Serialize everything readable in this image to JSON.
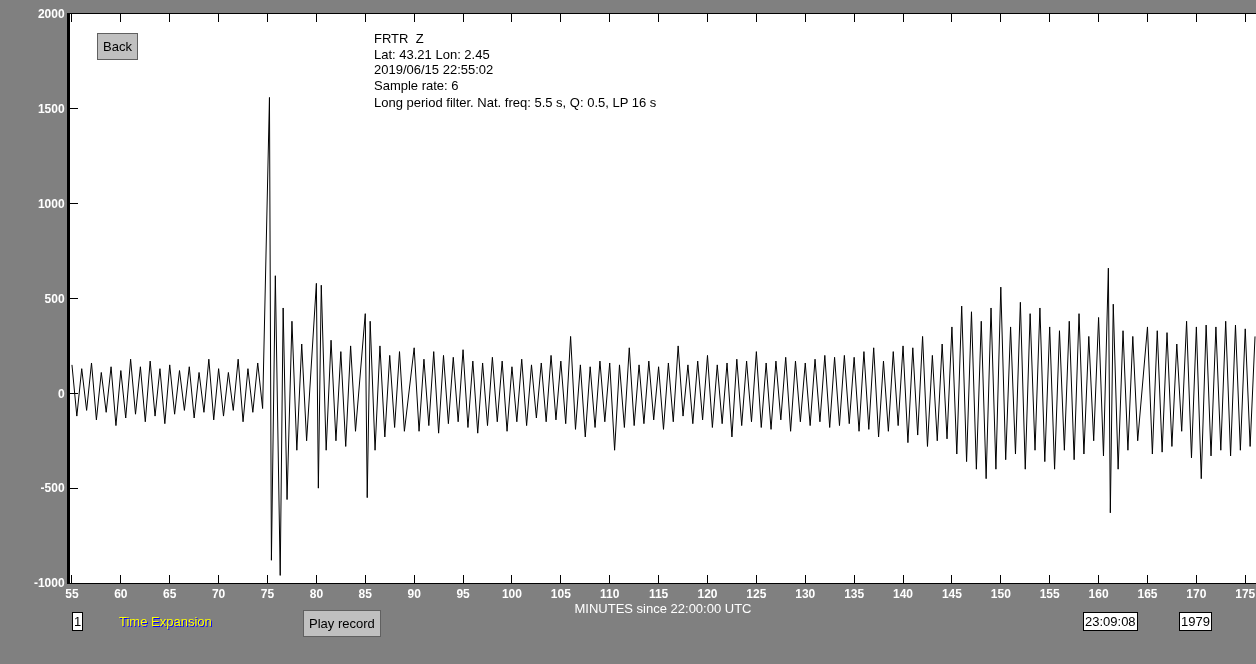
{
  "chart_data": {
    "type": "line",
    "xlabel": "MINUTES since 22:00:00 UTC",
    "annotations": [
      "Back",
      "FRTR  Z",
      "Lat: 43.21 Lon: 2.45",
      "2019/06/15 22:55:02",
      "Sample rate: 6",
      "Long period filter. Nat. freq: 5.5 s, Q: 0.5, LP 16 s",
      "1",
      "Time Expansion",
      "Play record",
      "23:09:08",
      "1979"
    ],
    "xlim": [
      54.8,
      176.1
    ],
    "xticks": [
      55,
      60,
      65,
      70,
      75,
      80,
      85,
      90,
      95,
      100,
      105,
      110,
      115,
      120,
      125,
      130,
      135,
      140,
      145,
      150,
      155,
      160,
      165,
      170,
      175
    ],
    "ylim": [
      -1000,
      2000
    ],
    "yticks": [
      -1000,
      -500,
      0,
      500,
      1000,
      1500,
      2000
    ],
    "series": [
      {
        "color": "#000000",
        "x": [
          55,
          55.5,
          56,
          56.5,
          57,
          57.5,
          58,
          58.5,
          59,
          59.5,
          60,
          60.5,
          61,
          61.5,
          62,
          62.5,
          63,
          63.5,
          64,
          64.5,
          65,
          65.5,
          66,
          66.5,
          67,
          67.5,
          68,
          68.5,
          69,
          69.5,
          70,
          70.5,
          71,
          71.5,
          72,
          72.5,
          73,
          73.5,
          74,
          74.5,
          75.2,
          75.4,
          75.8,
          76.3,
          76.6,
          77,
          77.5,
          78,
          78.5,
          79,
          80,
          80.2,
          80.5,
          81,
          81.5,
          82,
          82.5,
          83,
          83.5,
          84,
          85,
          85.2,
          85.5,
          86,
          86.5,
          87,
          87.5,
          88,
          88.5,
          89,
          90,
          90.5,
          91,
          91.5,
          92,
          92.5,
          93,
          93.5,
          94,
          94.5,
          95,
          95.5,
          96,
          96.5,
          97,
          97.5,
          98,
          98.5,
          99,
          99.5,
          100,
          100.5,
          101,
          101.5,
          102,
          102.5,
          103,
          103.5,
          104,
          104.5,
          105,
          105.5,
          106,
          106.5,
          107,
          107.5,
          108,
          108.5,
          109,
          109.5,
          110,
          110.5,
          111,
          111.5,
          112,
          112.5,
          113,
          113.5,
          114,
          114.5,
          115,
          115.5,
          116,
          116.5,
          117,
          117.5,
          118,
          118.5,
          119,
          119.5,
          120,
          120.5,
          121,
          121.5,
          122,
          122.5,
          123,
          123.5,
          124,
          124.5,
          125,
          125.5,
          126,
          126.5,
          127,
          127.5,
          128,
          128.5,
          129,
          129.5,
          130,
          130.5,
          131,
          131.5,
          132,
          132.5,
          133,
          133.5,
          134,
          134.5,
          135,
          135.5,
          136,
          136.5,
          137,
          137.5,
          138,
          138.5,
          139,
          139.5,
          140,
          140.5,
          141,
          141.5,
          142,
          142.5,
          143,
          143.5,
          144,
          144.5,
          145,
          145.5,
          146,
          146.5,
          147,
          147.5,
          148,
          148.5,
          149,
          149.5,
          150,
          150.5,
          151,
          151.5,
          152,
          152.5,
          153,
          153.5,
          154,
          154.5,
          155,
          155.5,
          156,
          156.5,
          157,
          157.5,
          158,
          158.5,
          159,
          159.5,
          160,
          160.5,
          161,
          161.2,
          161.5,
          162,
          162.5,
          163,
          163.5,
          164,
          165,
          165.5,
          166,
          166.5,
          167,
          167.5,
          168,
          168.5,
          169,
          169.5,
          170,
          170.5,
          171,
          171.5,
          172,
          172.5,
          173,
          173.5,
          174,
          174.5,
          175,
          175.5,
          176
        ],
        "values": [
          150,
          -120,
          130,
          -90,
          160,
          -140,
          110,
          -100,
          140,
          -170,
          120,
          -130,
          180,
          -110,
          140,
          -150,
          170,
          -120,
          130,
          -160,
          150,
          -110,
          120,
          -90,
          140,
          -130,
          110,
          -100,
          180,
          -140,
          130,
          -120,
          110,
          -90,
          180,
          -150,
          130,
          -100,
          160,
          -80,
          1560,
          -880,
          620,
          -960,
          450,
          -560,
          380,
          -300,
          260,
          -250,
          580,
          -500,
          570,
          -300,
          280,
          -250,
          220,
          -280,
          250,
          -200,
          420,
          -550,
          380,
          -300,
          250,
          -230,
          200,
          -180,
          220,
          -200,
          240,
          -200,
          180,
          -170,
          220,
          -210,
          200,
          -160,
          190,
          -150,
          230,
          -180,
          170,
          -210,
          160,
          -170,
          190,
          -150,
          170,
          -200,
          140,
          -150,
          180,
          -170,
          150,
          -130,
          160,
          -150,
          200,
          -140,
          170,
          -160,
          300,
          -190,
          150,
          -230,
          140,
          -180,
          170,
          -150,
          160,
          -300,
          150,
          -180,
          240,
          -170,
          150,
          -160,
          170,
          -140,
          140,
          -190,
          160,
          -150,
          250,
          -120,
          150,
          -160,
          170,
          -140,
          200,
          -180,
          150,
          -160,
          160,
          -230,
          180,
          -170,
          170,
          -150,
          220,
          -180,
          160,
          -190,
          170,
          -140,
          190,
          -200,
          170,
          -150,
          160,
          -170,
          180,
          -150,
          200,
          -180,
          190,
          -170,
          200,
          -160,
          190,
          -200,
          220,
          -190,
          240,
          -230,
          170,
          -200,
          220,
          -170,
          250,
          -260,
          240,
          -220,
          300,
          -280,
          200,
          -250,
          260,
          -240,
          350,
          -320,
          460,
          -360,
          430,
          -400,
          380,
          -450,
          450,
          -400,
          560,
          -350,
          350,
          -320,
          480,
          -400,
          420,
          -300,
          450,
          -360,
          350,
          -400,
          330,
          -300,
          380,
          -350,
          420,
          -320,
          300,
          -250,
          400,
          -330,
          660,
          -630,
          470,
          -400,
          330,
          -300,
          300,
          -250,
          350,
          -320,
          330,
          -310,
          320,
          -280,
          260,
          -200,
          380,
          -340,
          350,
          -450,
          360,
          -330,
          350,
          -300,
          380,
          -330,
          360,
          -300,
          340,
          -280,
          300
        ]
      }
    ]
  }
}
